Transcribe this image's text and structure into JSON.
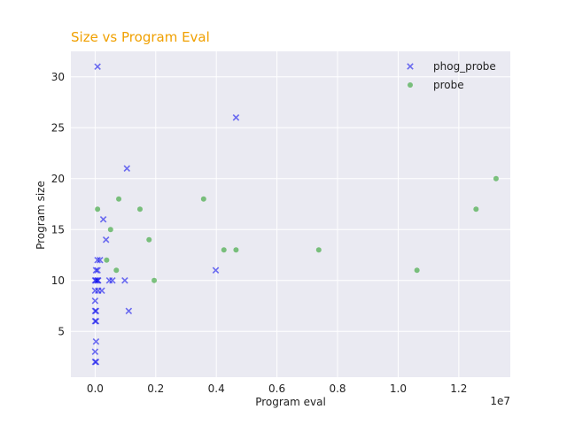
{
  "chart_data": {
    "type": "scatter",
    "title": "Size vs Program Eval",
    "xlabel": "Program eval",
    "ylabel": "Program size",
    "x_offset_label": "1e7",
    "xlim": [
      -800000,
      13700000
    ],
    "ylim": [
      0.5,
      32.5
    ],
    "xticks": [
      0,
      2000000,
      4000000,
      6000000,
      8000000,
      10000000,
      12000000
    ],
    "xtick_labels": [
      "0.0",
      "0.2",
      "0.4",
      "0.6",
      "0.8",
      "1.0",
      "1.2"
    ],
    "yticks": [
      5,
      10,
      15,
      20,
      25,
      30
    ],
    "ytick_labels": [
      "5",
      "10",
      "15",
      "20",
      "25",
      "30"
    ],
    "grid": true,
    "legend_position": "top-right",
    "series": [
      {
        "name": "phog_probe",
        "marker": "x",
        "color": "#0000ee",
        "points": [
          [
            80000,
            31
          ],
          [
            4650000,
            26
          ],
          [
            1050000,
            21
          ],
          [
            270000,
            16
          ],
          [
            360000,
            14
          ],
          [
            80000,
            12
          ],
          [
            160000,
            12
          ],
          [
            3980000,
            11
          ],
          [
            30000,
            11
          ],
          [
            80000,
            11
          ],
          [
            0,
            10
          ],
          [
            30000,
            10
          ],
          [
            80000,
            10
          ],
          [
            100000,
            10
          ],
          [
            470000,
            10
          ],
          [
            570000,
            10
          ],
          [
            980000,
            10
          ],
          [
            0,
            9
          ],
          [
            100000,
            9
          ],
          [
            220000,
            9
          ],
          [
            0,
            8
          ],
          [
            0,
            7
          ],
          [
            30000,
            7
          ],
          [
            1110000,
            7
          ],
          [
            0,
            6
          ],
          [
            30000,
            6
          ],
          [
            30000,
            4
          ],
          [
            0,
            3
          ],
          [
            0,
            2
          ],
          [
            30000,
            2
          ]
        ]
      },
      {
        "name": "probe",
        "marker": "o",
        "color": "#2ca02c",
        "points": [
          [
            13230000,
            20
          ],
          [
            12570000,
            17
          ],
          [
            780000,
            18
          ],
          [
            3580000,
            18
          ],
          [
            80000,
            17
          ],
          [
            1480000,
            17
          ],
          [
            510000,
            15
          ],
          [
            1780000,
            14
          ],
          [
            4250000,
            13
          ],
          [
            4650000,
            13
          ],
          [
            7380000,
            13
          ],
          [
            380000,
            12
          ],
          [
            700000,
            11
          ],
          [
            10620000,
            11
          ],
          [
            1950000,
            10
          ]
        ]
      }
    ]
  }
}
